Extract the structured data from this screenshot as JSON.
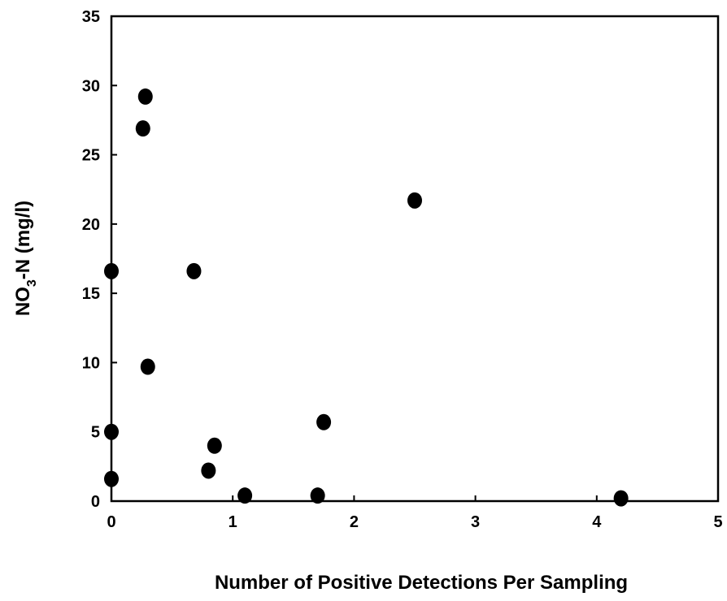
{
  "chart_data": {
    "type": "scatter",
    "title": "",
    "xlabel": "Number of Positive Detections Per Sampling",
    "ylabel": {
      "main": "NO",
      "subscript": "3",
      "rest": "-N (mg/l)"
    },
    "xlim": [
      0,
      5
    ],
    "ylim": [
      0,
      35
    ],
    "xticks": [
      "0",
      "1",
      "2",
      "3",
      "4",
      "5"
    ],
    "yticks": [
      "0",
      "5",
      "10",
      "15",
      "20",
      "25",
      "30",
      "35"
    ],
    "grid": false,
    "marker_color": "#000000",
    "points": [
      {
        "x": 0.0,
        "y": 16.6
      },
      {
        "x": 0.0,
        "y": 5.0
      },
      {
        "x": 0.0,
        "y": 1.6
      },
      {
        "x": 0.26,
        "y": 26.9
      },
      {
        "x": 0.28,
        "y": 29.2
      },
      {
        "x": 0.3,
        "y": 9.7
      },
      {
        "x": 0.68,
        "y": 16.6
      },
      {
        "x": 0.8,
        "y": 2.2
      },
      {
        "x": 0.85,
        "y": 4.0
      },
      {
        "x": 1.1,
        "y": 0.4
      },
      {
        "x": 1.7,
        "y": 0.4
      },
      {
        "x": 1.75,
        "y": 5.7
      },
      {
        "x": 2.5,
        "y": 21.7
      },
      {
        "x": 4.2,
        "y": 0.2
      }
    ]
  }
}
